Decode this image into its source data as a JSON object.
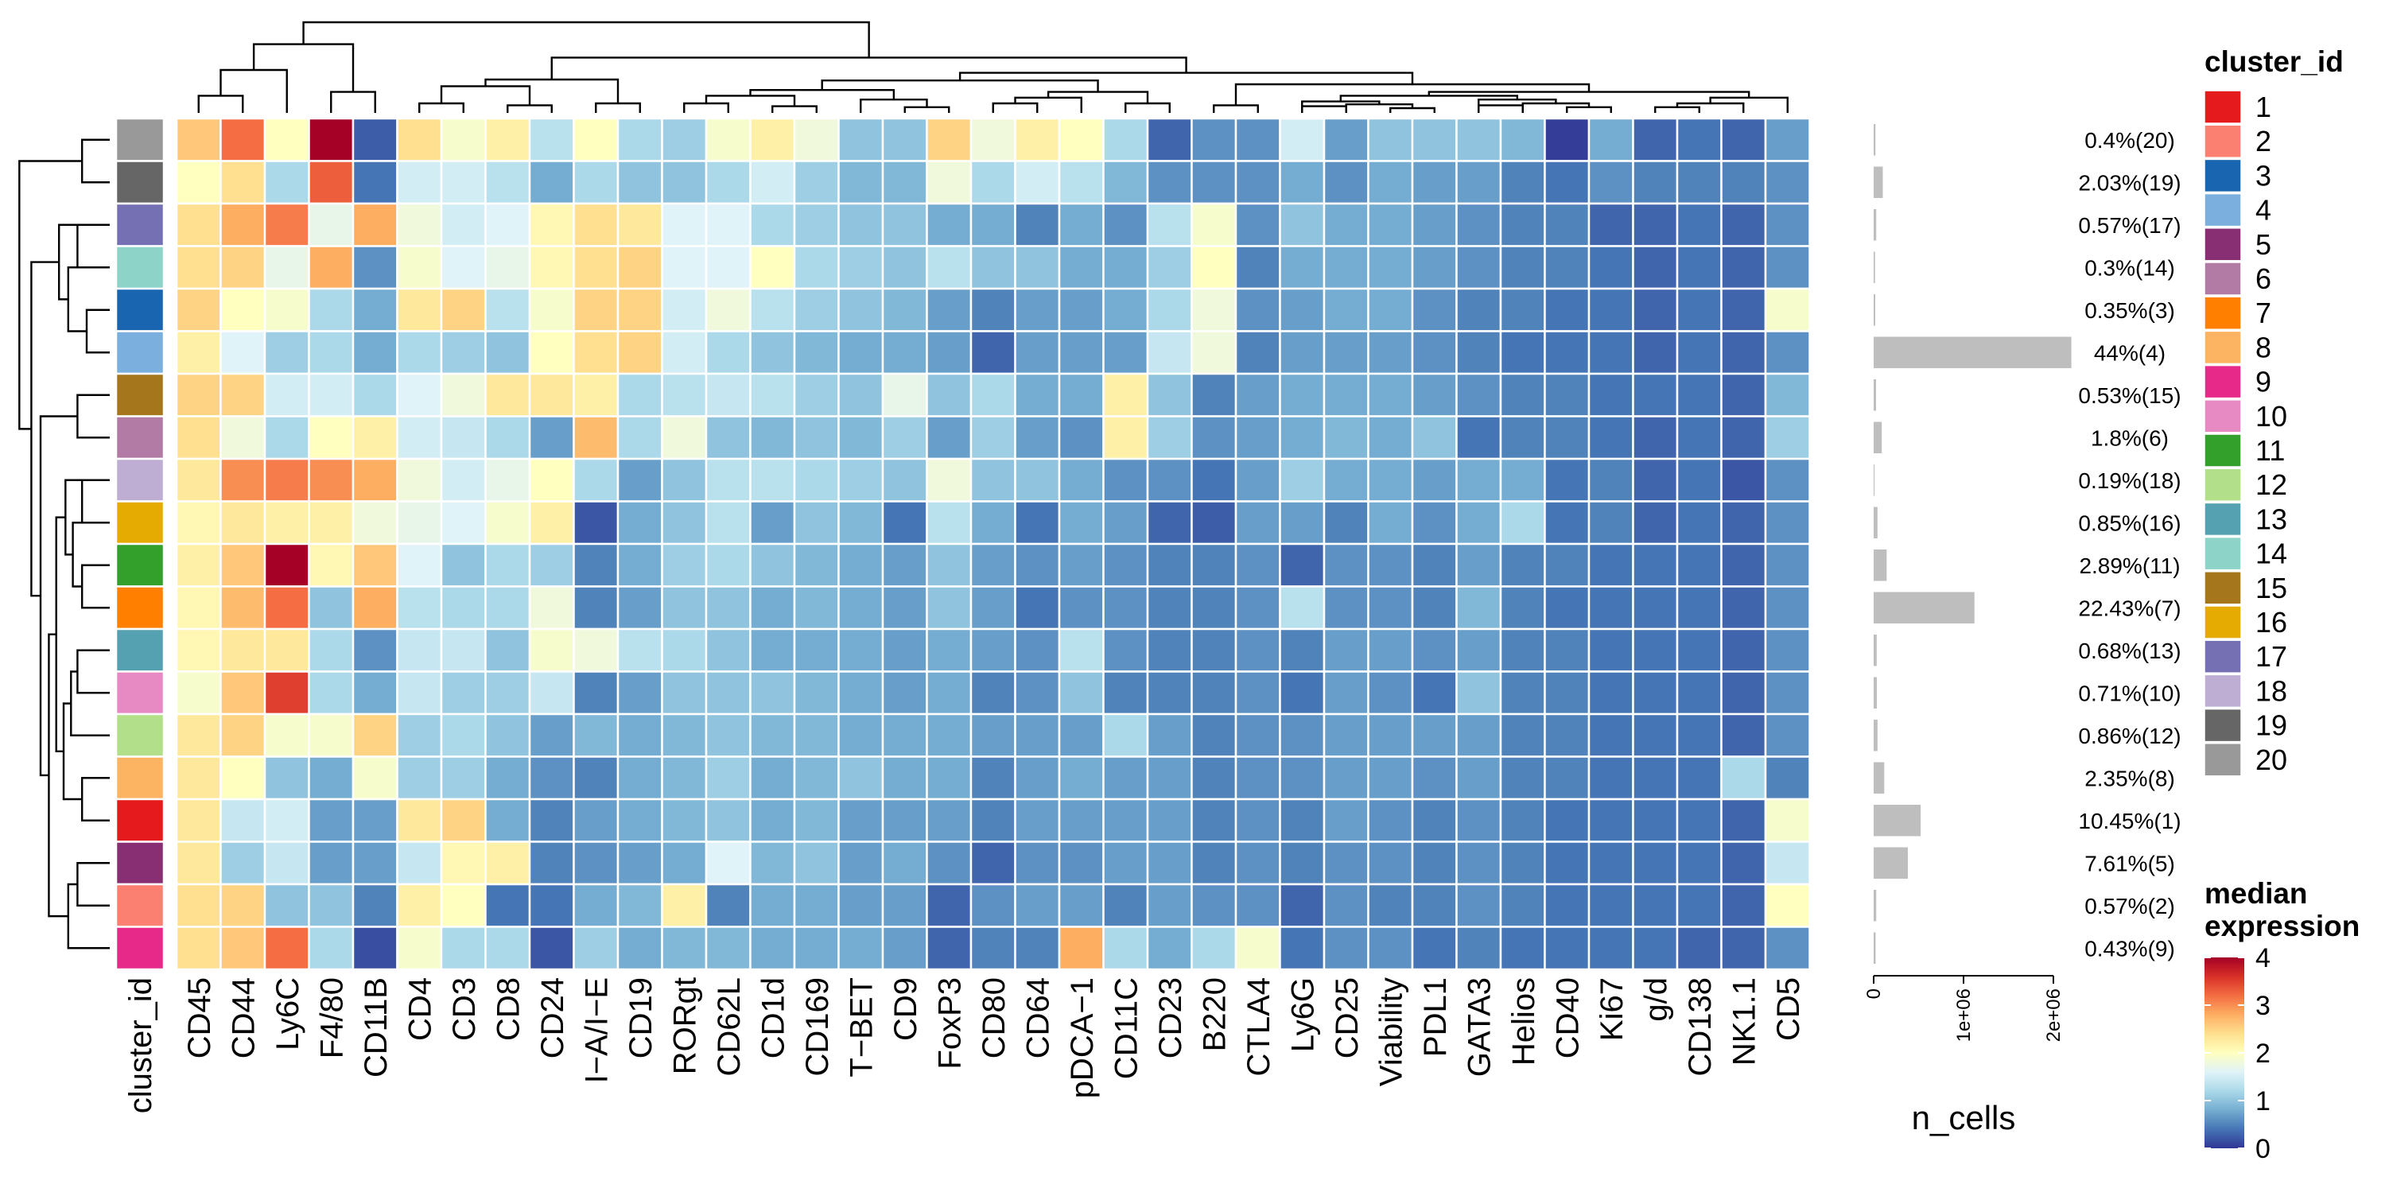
{
  "chart_data": {
    "type": "heatmap",
    "title": "",
    "markers": [
      "CD45",
      "CD44",
      "Ly6C",
      "F4/80",
      "CD11B",
      "CD4",
      "CD3",
      "CD8",
      "CD24",
      "I−A/I−E",
      "CD19",
      "RORgt",
      "CD62L",
      "CD1d",
      "CD169",
      "T−BET",
      "CD9",
      "FoxP3",
      "CD80",
      "CD64",
      "pDCA−1",
      "CD11C",
      "CD23",
      "B220",
      "CTLA4",
      "Ly6G",
      "CD25",
      "Viability",
      "PDL1",
      "GATA3",
      "Helios",
      "CD40",
      "Ki67",
      "g/d",
      "CD138",
      "NK1.1",
      "CD5"
    ],
    "row_annotation_label": "cluster_id",
    "rows": [
      {
        "cluster": "20",
        "label": "0.4%(20)",
        "n_cells": 20000,
        "values": [
          2.6,
          3.2,
          2.0,
          4.0,
          0.25,
          2.4,
          1.9,
          2.2,
          1.3,
          2.0,
          1.2,
          1.1,
          1.9,
          2.2,
          1.8,
          1.0,
          1.0,
          2.5,
          1.8,
          2.2,
          2.0,
          1.2,
          0.3,
          0.6,
          0.6,
          1.5,
          0.7,
          1.0,
          1.0,
          1.0,
          0.9,
          0.05,
          0.8,
          0.3,
          0.4,
          0.3,
          0.7
        ]
      },
      {
        "cluster": "19",
        "label": "2.03%(19)",
        "n_cells": 101500,
        "values": [
          2.0,
          2.4,
          1.2,
          3.3,
          0.4,
          1.5,
          1.5,
          1.3,
          0.8,
          1.2,
          1.0,
          1.0,
          1.2,
          1.5,
          1.1,
          0.9,
          0.9,
          1.8,
          1.2,
          1.5,
          1.3,
          0.9,
          0.6,
          0.6,
          0.6,
          0.8,
          0.6,
          0.8,
          0.7,
          0.7,
          0.5,
          0.4,
          0.6,
          0.5,
          0.5,
          0.5,
          0.6
        ]
      },
      {
        "cluster": "17",
        "label": "0.57%(17)",
        "n_cells": 28500,
        "values": [
          2.4,
          2.8,
          3.1,
          1.7,
          2.8,
          1.8,
          1.5,
          1.6,
          2.1,
          2.4,
          2.3,
          1.6,
          1.6,
          1.2,
          1.1,
          1.0,
          1.0,
          0.8,
          0.8,
          0.5,
          0.8,
          0.6,
          1.3,
          1.9,
          0.6,
          1.0,
          0.8,
          0.8,
          0.7,
          0.6,
          0.5,
          0.5,
          0.3,
          0.3,
          0.4,
          0.3,
          0.6
        ]
      },
      {
        "cluster": "14",
        "label": "0.3%(14)",
        "n_cells": 15000,
        "values": [
          2.4,
          2.5,
          1.7,
          2.8,
          0.6,
          1.9,
          1.6,
          1.7,
          2.1,
          2.4,
          2.5,
          1.6,
          1.6,
          2.0,
          1.2,
          1.1,
          1.0,
          1.3,
          1.0,
          1.0,
          0.8,
          0.8,
          1.1,
          2.0,
          0.5,
          0.8,
          0.8,
          0.8,
          0.7,
          0.6,
          0.5,
          0.5,
          0.4,
          0.3,
          0.4,
          0.3,
          0.6
        ]
      },
      {
        "cluster": "3",
        "label": "0.35%(3)",
        "n_cells": 17500,
        "values": [
          2.5,
          2.0,
          1.9,
          1.2,
          0.8,
          2.3,
          2.5,
          1.3,
          1.9,
          2.5,
          2.5,
          1.5,
          1.8,
          1.3,
          1.1,
          1.0,
          0.9,
          0.7,
          0.5,
          0.7,
          0.7,
          0.8,
          1.2,
          1.8,
          0.6,
          0.7,
          0.8,
          0.8,
          0.6,
          0.5,
          0.5,
          0.4,
          0.4,
          0.3,
          0.4,
          0.3,
          1.9
        ]
      },
      {
        "cluster": "4",
        "label": "44%(4)",
        "n_cells": 2200000,
        "values": [
          2.2,
          1.6,
          1.1,
          1.2,
          0.8,
          1.2,
          1.1,
          1.0,
          2.0,
          2.4,
          2.5,
          1.5,
          1.2,
          1.0,
          0.9,
          0.8,
          0.8,
          0.7,
          0.3,
          0.7,
          0.7,
          0.7,
          1.4,
          1.8,
          0.5,
          0.7,
          0.7,
          0.7,
          0.6,
          0.5,
          0.4,
          0.4,
          0.4,
          0.3,
          0.4,
          0.3,
          0.6
        ]
      },
      {
        "cluster": "15",
        "label": "0.53%(15)",
        "n_cells": 26500,
        "values": [
          2.5,
          2.5,
          1.5,
          1.5,
          1.2,
          1.6,
          1.8,
          2.3,
          2.3,
          2.2,
          1.2,
          1.3,
          1.4,
          1.3,
          1.1,
          1.0,
          1.7,
          1.0,
          1.2,
          0.8,
          0.8,
          2.2,
          1.0,
          0.5,
          0.7,
          0.8,
          0.8,
          0.8,
          0.7,
          0.6,
          0.5,
          0.5,
          0.4,
          0.4,
          0.4,
          0.3,
          0.9
        ]
      },
      {
        "cluster": "6",
        "label": "1.8%(6)",
        "n_cells": 90000,
        "values": [
          2.4,
          1.8,
          1.2,
          2.0,
          2.2,
          1.5,
          1.4,
          1.2,
          0.7,
          2.7,
          1.2,
          1.8,
          1.0,
          0.9,
          1.0,
          0.9,
          1.1,
          0.7,
          1.1,
          0.7,
          0.6,
          2.2,
          1.1,
          0.6,
          0.7,
          0.8,
          0.9,
          0.8,
          1.0,
          0.4,
          0.5,
          0.5,
          0.4,
          0.3,
          0.4,
          0.3,
          1.1
        ]
      },
      {
        "cluster": "18",
        "label": "0.19%(18)",
        "n_cells": 9500,
        "values": [
          2.3,
          3.0,
          3.1,
          3.0,
          2.8,
          1.8,
          1.5,
          1.7,
          2.0,
          1.2,
          0.7,
          1.0,
          1.3,
          1.3,
          1.2,
          1.1,
          1.0,
          1.8,
          1.0,
          1.0,
          0.8,
          0.6,
          0.6,
          0.4,
          0.7,
          1.1,
          0.8,
          0.8,
          0.7,
          0.8,
          0.8,
          0.4,
          0.5,
          0.3,
          0.4,
          0.2,
          0.6
        ]
      },
      {
        "cluster": "16",
        "label": "0.85%(16)",
        "n_cells": 42500,
        "values": [
          2.1,
          2.3,
          2.2,
          2.2,
          1.8,
          1.7,
          1.6,
          1.9,
          2.2,
          0.2,
          0.8,
          1.0,
          1.3,
          0.7,
          1.0,
          0.9,
          0.4,
          1.3,
          0.8,
          0.4,
          0.8,
          0.7,
          0.3,
          0.25,
          0.7,
          0.7,
          0.5,
          0.8,
          0.6,
          0.8,
          1.2,
          0.4,
          0.5,
          0.3,
          0.4,
          0.3,
          0.6
        ]
      },
      {
        "cluster": "11",
        "label": "2.89%(11)",
        "n_cells": 144500,
        "values": [
          2.2,
          2.6,
          4.0,
          2.1,
          2.6,
          1.6,
          1.0,
          1.2,
          1.1,
          0.5,
          0.8,
          1.1,
          1.2,
          1.0,
          0.9,
          0.8,
          0.7,
          1.0,
          0.7,
          0.6,
          0.7,
          0.6,
          0.5,
          0.5,
          0.6,
          0.3,
          0.6,
          0.6,
          0.5,
          0.7,
          0.5,
          0.5,
          0.4,
          0.4,
          0.4,
          0.3,
          0.6
        ]
      },
      {
        "cluster": "7",
        "label": "22.43%(7)",
        "n_cells": 1121500,
        "values": [
          2.1,
          2.7,
          3.2,
          1.0,
          2.8,
          1.3,
          1.2,
          1.2,
          1.8,
          0.5,
          0.7,
          1.0,
          1.0,
          0.8,
          0.9,
          0.8,
          0.7,
          1.0,
          0.7,
          0.4,
          0.6,
          0.6,
          0.5,
          0.5,
          0.6,
          1.3,
          0.6,
          0.6,
          0.5,
          0.9,
          0.5,
          0.4,
          0.4,
          0.4,
          0.4,
          0.3,
          0.6
        ]
      },
      {
        "cluster": "13",
        "label": "0.68%(13)",
        "n_cells": 34000,
        "values": [
          2.1,
          2.3,
          2.3,
          1.2,
          0.6,
          1.4,
          1.4,
          1.0,
          1.9,
          1.8,
          1.3,
          1.2,
          1.0,
          0.8,
          0.8,
          0.8,
          0.7,
          0.8,
          0.7,
          0.6,
          1.3,
          0.6,
          0.5,
          0.5,
          0.6,
          0.5,
          0.7,
          0.7,
          0.6,
          0.7,
          0.5,
          0.5,
          0.4,
          0.4,
          0.4,
          0.3,
          0.6
        ]
      },
      {
        "cluster": "10",
        "label": "0.71%(10)",
        "n_cells": 35500,
        "values": [
          1.9,
          2.6,
          3.5,
          1.2,
          0.8,
          1.4,
          1.1,
          1.1,
          1.4,
          0.5,
          0.7,
          1.0,
          1.0,
          1.0,
          0.9,
          0.8,
          0.7,
          0.8,
          0.5,
          0.6,
          1.0,
          0.5,
          0.5,
          0.5,
          0.6,
          0.4,
          0.7,
          0.6,
          0.4,
          1.0,
          0.5,
          0.5,
          0.4,
          0.4,
          0.4,
          0.3,
          0.6
        ]
      },
      {
        "cluster": "12",
        "label": "0.86%(12)",
        "n_cells": 43000,
        "values": [
          2.3,
          2.5,
          1.9,
          1.9,
          2.5,
          1.1,
          1.2,
          1.0,
          0.7,
          0.9,
          0.8,
          0.9,
          1.0,
          0.9,
          0.9,
          0.8,
          0.8,
          0.8,
          0.7,
          0.7,
          0.7,
          1.2,
          0.7,
          0.5,
          0.6,
          0.6,
          0.7,
          0.7,
          0.7,
          0.7,
          0.5,
          0.5,
          0.4,
          0.4,
          0.4,
          0.3,
          0.6
        ]
      },
      {
        "cluster": "8",
        "label": "2.35%(8)",
        "n_cells": 117500,
        "values": [
          2.3,
          2.0,
          1.0,
          0.8,
          1.9,
          1.1,
          1.1,
          0.8,
          0.6,
          0.5,
          0.8,
          0.9,
          1.1,
          0.8,
          0.9,
          1.0,
          0.8,
          0.8,
          0.5,
          0.7,
          0.8,
          0.7,
          0.7,
          0.5,
          0.6,
          0.6,
          0.7,
          0.7,
          0.6,
          0.7,
          0.5,
          0.5,
          0.4,
          0.4,
          0.4,
          1.2,
          0.5
        ]
      },
      {
        "cluster": "1",
        "label": "10.45%(1)",
        "n_cells": 522500,
        "values": [
          2.3,
          1.4,
          1.5,
          0.7,
          0.7,
          2.3,
          2.5,
          0.8,
          0.5,
          0.7,
          0.8,
          0.9,
          1.0,
          0.8,
          0.9,
          0.7,
          0.7,
          0.7,
          0.5,
          0.7,
          0.7,
          0.7,
          0.7,
          0.5,
          0.6,
          0.5,
          0.7,
          0.6,
          0.5,
          0.6,
          0.5,
          0.4,
          0.4,
          0.4,
          0.4,
          0.3,
          1.9
        ]
      },
      {
        "cluster": "5",
        "label": "7.61%(5)",
        "n_cells": 380500,
        "values": [
          2.3,
          1.1,
          1.4,
          0.7,
          0.7,
          1.4,
          2.1,
          2.2,
          0.5,
          0.6,
          0.7,
          0.8,
          1.6,
          0.9,
          1.0,
          0.7,
          0.8,
          0.6,
          0.3,
          0.6,
          0.6,
          0.7,
          0.7,
          0.5,
          0.6,
          0.5,
          0.6,
          0.6,
          0.5,
          0.6,
          0.5,
          0.4,
          0.4,
          0.4,
          0.4,
          0.3,
          1.4
        ]
      },
      {
        "cluster": "2",
        "label": "0.57%(2)",
        "n_cells": 28500,
        "values": [
          2.4,
          2.5,
          1.0,
          1.0,
          0.5,
          2.2,
          2.0,
          0.4,
          0.4,
          0.8,
          0.9,
          2.2,
          0.5,
          0.8,
          0.8,
          0.7,
          0.7,
          0.3,
          0.6,
          0.7,
          0.7,
          0.5,
          0.7,
          0.6,
          0.6,
          0.3,
          0.6,
          0.5,
          0.5,
          0.6,
          0.5,
          0.4,
          0.4,
          0.4,
          0.4,
          0.3,
          2.0
        ]
      },
      {
        "cluster": "9",
        "label": "0.43%(9)",
        "n_cells": 21500,
        "values": [
          2.4,
          2.6,
          3.2,
          1.2,
          0.15,
          1.9,
          1.2,
          1.2,
          0.2,
          1.1,
          0.8,
          0.9,
          0.9,
          0.8,
          0.8,
          0.8,
          0.7,
          0.3,
          0.5,
          0.5,
          2.8,
          1.2,
          0.8,
          1.2,
          1.9,
          0.4,
          0.6,
          0.6,
          0.4,
          0.5,
          0.4,
          0.4,
          0.4,
          0.4,
          0.3,
          0.3,
          0.6
        ]
      }
    ],
    "n_cells_axis": {
      "label": "n_cells",
      "ticks": [
        0,
        1000000,
        2000000
      ],
      "tick_labels": [
        "0",
        "1e+06",
        "2e+06"
      ],
      "range": [
        0,
        2000000
      ]
    },
    "cluster_legend": {
      "title": "cluster_id",
      "entries": [
        {
          "id": "1",
          "color": "#E41A1C"
        },
        {
          "id": "2",
          "color": "#FB8072"
        },
        {
          "id": "3",
          "color": "#1965B0"
        },
        {
          "id": "4",
          "color": "#7BAFDE"
        },
        {
          "id": "5",
          "color": "#882E72"
        },
        {
          "id": "6",
          "color": "#B17BA6"
        },
        {
          "id": "7",
          "color": "#FF7F00"
        },
        {
          "id": "8",
          "color": "#FDB462"
        },
        {
          "id": "9",
          "color": "#E7298A"
        },
        {
          "id": "10",
          "color": "#E78AC3"
        },
        {
          "id": "11",
          "color": "#33A02C"
        },
        {
          "id": "12",
          "color": "#B2DF8A"
        },
        {
          "id": "13",
          "color": "#55A1B1"
        },
        {
          "id": "14",
          "color": "#8DD3C7"
        },
        {
          "id": "15",
          "color": "#A6761D"
        },
        {
          "id": "16",
          "color": "#E6AB02"
        },
        {
          "id": "17",
          "color": "#7570B3"
        },
        {
          "id": "18",
          "color": "#BEAED4"
        },
        {
          "id": "19",
          "color": "#666666"
        },
        {
          "id": "20",
          "color": "#999999"
        }
      ]
    },
    "expression_legend": {
      "title_line1": "median",
      "title_line2": "expression",
      "ticks": [
        "0",
        "1",
        "2",
        "3",
        "4"
      ],
      "range": [
        0,
        4
      ],
      "palette": [
        "#313695",
        "#4575B4",
        "#74ADD1",
        "#ABD9E9",
        "#E0F3F8",
        "#FFFFBF",
        "#FEE090",
        "#FDAE61",
        "#F46D43",
        "#D73027",
        "#A50026"
      ]
    },
    "bar_color": "#BEBEBE",
    "grid_line_color": "#FFFFFF"
  }
}
